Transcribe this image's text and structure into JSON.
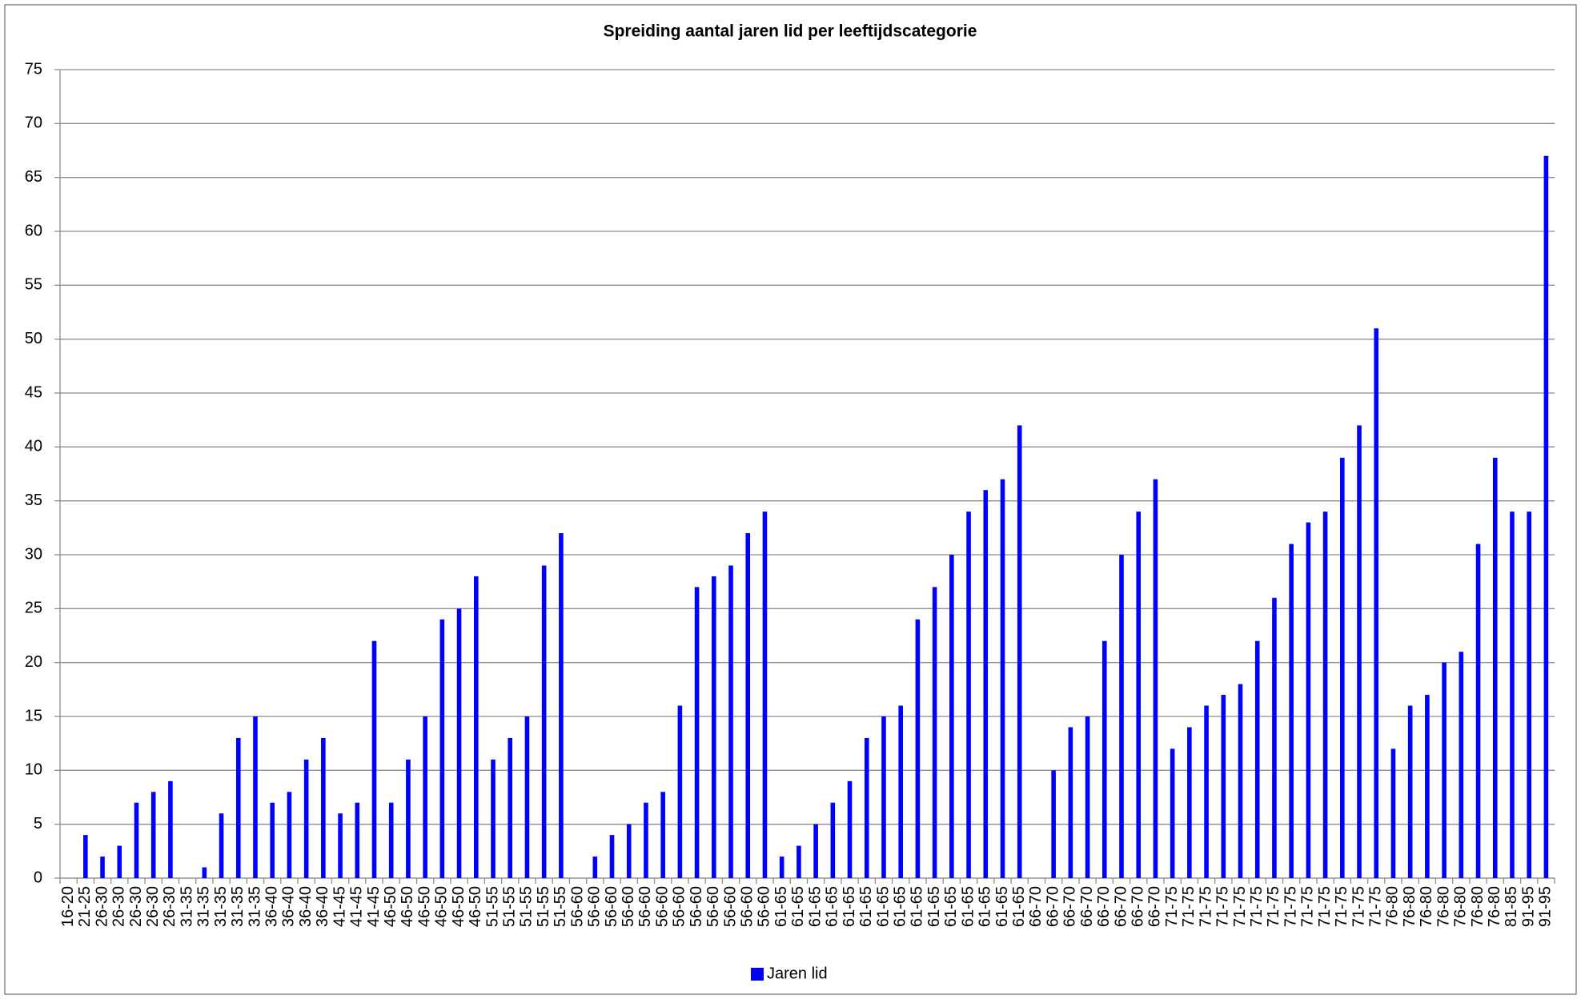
{
  "chart_data": {
    "type": "bar",
    "title": "Spreiding aantal jaren lid per leeftijdscategorie",
    "categories": [
      "16-20",
      "21-25",
      "26-30",
      "26-30",
      "26-30",
      "26-30",
      "26-30",
      "31-35",
      "31-35",
      "31-35",
      "31-35",
      "31-35",
      "36-40",
      "36-40",
      "36-40",
      "36-40",
      "41-45",
      "41-45",
      "41-45",
      "46-50",
      "46-50",
      "46-50",
      "46-50",
      "46-50",
      "46-50",
      "51-55",
      "51-55",
      "51-55",
      "51-55",
      "51-55",
      "56-60",
      "56-60",
      "56-60",
      "56-60",
      "56-60",
      "56-60",
      "56-60",
      "56-60",
      "56-60",
      "56-60",
      "56-60",
      "56-60",
      "61-65",
      "61-65",
      "61-65",
      "61-65",
      "61-65",
      "61-65",
      "61-65",
      "61-65",
      "61-65",
      "61-65",
      "61-65",
      "61-65",
      "61-65",
      "61-65",
      "61-65",
      "66-70",
      "66-70",
      "66-70",
      "66-70",
      "66-70",
      "66-70",
      "66-70",
      "66-70",
      "71-75",
      "71-75",
      "71-75",
      "71-75",
      "71-75",
      "71-75",
      "71-75",
      "71-75",
      "71-75",
      "71-75",
      "71-75",
      "71-75",
      "71-75",
      "76-80",
      "76-80",
      "76-80",
      "76-80",
      "76-80",
      "76-80",
      "76-80",
      "81-85",
      "91-95",
      "91-95"
    ],
    "series": [
      {
        "name": "Jaren lid",
        "color": "#0000ff",
        "values": [
          0,
          4,
          2,
          3,
          7,
          8,
          9,
          0,
          1,
          6,
          13,
          15,
          7,
          8,
          11,
          13,
          6,
          7,
          22,
          7,
          11,
          15,
          24,
          25,
          28,
          11,
          13,
          15,
          29,
          32,
          0,
          2,
          4,
          5,
          7,
          8,
          16,
          27,
          28,
          29,
          32,
          34,
          2,
          3,
          5,
          7,
          9,
          13,
          15,
          16,
          24,
          27,
          30,
          34,
          36,
          37,
          42,
          0,
          10,
          14,
          15,
          22,
          30,
          34,
          37,
          12,
          14,
          16,
          17,
          18,
          22,
          26,
          31,
          33,
          34,
          39,
          42,
          51,
          12,
          16,
          17,
          20,
          21,
          31,
          39,
          34,
          34,
          67
        ]
      }
    ],
    "ylim": [
      0,
      75
    ],
    "yticks": [
      0,
      5,
      10,
      15,
      20,
      25,
      30,
      35,
      40,
      45,
      50,
      55,
      60,
      65,
      70,
      75
    ],
    "grid": true,
    "legend": "bottom"
  }
}
